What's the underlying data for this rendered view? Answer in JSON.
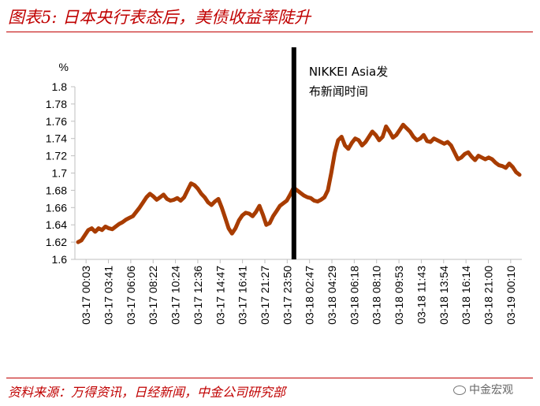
{
  "header": {
    "title": "图表5: 日本央行表态后，美债收益率陡升"
  },
  "footer": {
    "source": "资料来源：万得资讯，日经新闻，中金公司研究部",
    "watermark": "中金宏观"
  },
  "colors": {
    "accent": "#c00000",
    "series": "#a83c00",
    "event_line": "#000000"
  },
  "chart_data": {
    "type": "line",
    "y_unit_label": "%",
    "ylim": [
      1.6,
      1.8
    ],
    "yticks": [
      "1.8",
      "1.78",
      "1.76",
      "1.74",
      "1.72",
      "1.7",
      "1.68",
      "1.66",
      "1.64",
      "1.62",
      "1.6"
    ],
    "xticks": [
      "03-17 00:03",
      "03-17 03:41",
      "03-17 06:06",
      "03-17 08:22",
      "03-17 10:24",
      "03-17 12:36",
      "03-17 14:47",
      "03-17 16:41",
      "03-17 21:27",
      "03-17 23:50",
      "03-18 02:47",
      "03-18 04:29",
      "03-18 06:18",
      "03-18 08:10",
      "03-18 09:53",
      "03-18 11:43",
      "03-18 13:54",
      "03-18 16:14",
      "03-18 21:00",
      "03-19 00:10"
    ],
    "grid": false,
    "legend": "none",
    "annotation": {
      "line1": "NIKKEI Asia发",
      "line2": "布新闻时间",
      "at_tick_position": 9.3
    },
    "series": [
      {
        "values": [
          1.62,
          1.622,
          1.628,
          1.634,
          1.636,
          1.632,
          1.636,
          1.634,
          1.638,
          1.636,
          1.635,
          1.638,
          1.641,
          1.643,
          1.646,
          1.648,
          1.65,
          1.655,
          1.66,
          1.666,
          1.672,
          1.676,
          1.673,
          1.669,
          1.672,
          1.675,
          1.67,
          1.668,
          1.669,
          1.671,
          1.668,
          1.672,
          1.68,
          1.688,
          1.686,
          1.682,
          1.676,
          1.672,
          1.666,
          1.663,
          1.667,
          1.67,
          1.66,
          1.648,
          1.636,
          1.63,
          1.636,
          1.645,
          1.651,
          1.654,
          1.653,
          1.65,
          1.655,
          1.662,
          1.652,
          1.64,
          1.642,
          1.65,
          1.656,
          1.662,
          1.665,
          1.668,
          1.675,
          1.683,
          1.68,
          1.677,
          1.674,
          1.672,
          1.671,
          1.668,
          1.667,
          1.669,
          1.672,
          1.68,
          1.7,
          1.723,
          1.738,
          1.742,
          1.732,
          1.728,
          1.735,
          1.74,
          1.738,
          1.732,
          1.736,
          1.742,
          1.748,
          1.744,
          1.738,
          1.742,
          1.754,
          1.748,
          1.741,
          1.744,
          1.75,
          1.756,
          1.752,
          1.748,
          1.742,
          1.738,
          1.74,
          1.744,
          1.737,
          1.736,
          1.74,
          1.738,
          1.736,
          1.734,
          1.736,
          1.732,
          1.724,
          1.716,
          1.718,
          1.722,
          1.724,
          1.719,
          1.715,
          1.72,
          1.718,
          1.716,
          1.718,
          1.716,
          1.712,
          1.709,
          1.708,
          1.706,
          1.711,
          1.707,
          1.701,
          1.698
        ]
      }
    ]
  }
}
